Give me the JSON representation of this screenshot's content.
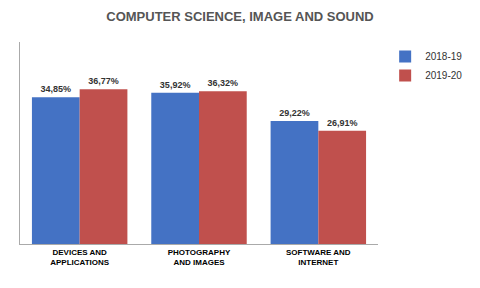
{
  "chart_data": {
    "type": "bar",
    "title": "COMPUTER SCIENCE, IMAGE AND SOUND",
    "categories": [
      "DEVICES AND APPLICATIONS",
      "PHOTOGRAPHY AND IMAGES",
      "SOFTWARE AND INTERNET"
    ],
    "series": [
      {
        "name": "2018-19",
        "color": "#4472C4",
        "values": [
          34.85,
          35.92,
          29.22
        ],
        "value_labels": [
          "34,85%",
          "35,92%",
          "29,22%"
        ]
      },
      {
        "name": "2019-20",
        "color": "#C0504D",
        "values": [
          36.77,
          36.32,
          26.91
        ],
        "value_labels": [
          "36,77%",
          "36,32%",
          "26,91%"
        ]
      }
    ],
    "ylim": [
      0,
      48
    ],
    "yticks": [],
    "grid": false,
    "legend": "upper right",
    "data_labels": true,
    "tick_labels": "x"
  }
}
